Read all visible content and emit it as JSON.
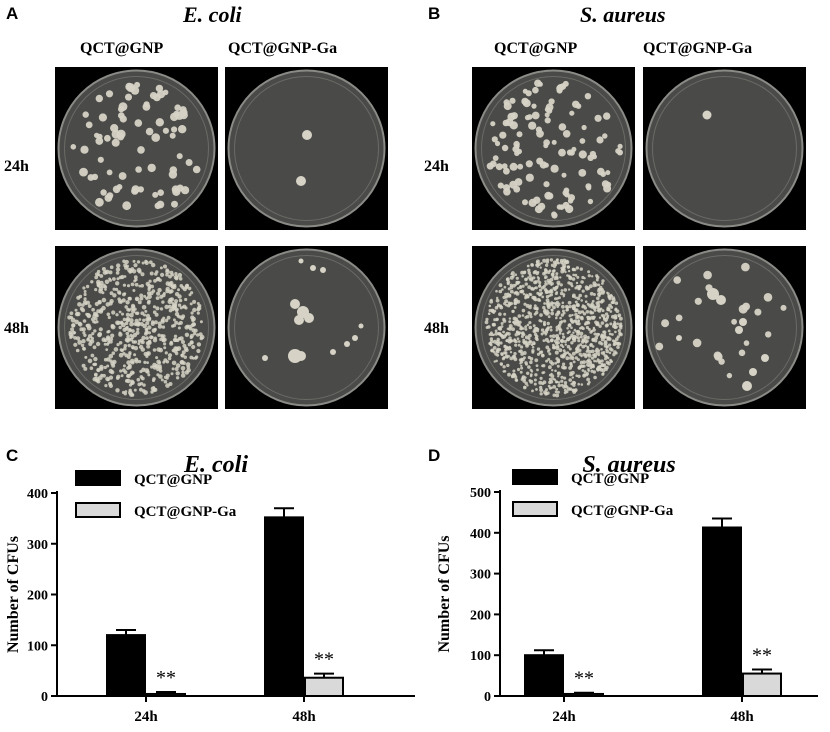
{
  "panel_a": {
    "letter": "A",
    "organism": "E. coli",
    "columns": [
      "QCT@GNP",
      "QCT@GNP-Ga"
    ],
    "rows": [
      "24h",
      "48h"
    ]
  },
  "panel_b": {
    "letter": "B",
    "organism": "S. aureus",
    "columns": [
      "QCT@GNP",
      "QCT@GNP-Ga"
    ],
    "rows": [
      "24h",
      "48h"
    ]
  },
  "colors": {
    "plate_background": "#000000",
    "dish": "#4a4a48",
    "colony": "#d6d3c6",
    "bar_gnp": "#000000",
    "bar_ga": "#d9d9d9"
  },
  "chart_data": [
    {
      "panel": "C",
      "type": "bar",
      "title": "E. coli",
      "ylabel": "Number of CFUs",
      "xlabel": "",
      "categories": [
        "24h",
        "48h"
      ],
      "ylim": [
        0,
        400
      ],
      "yticks": [
        0,
        100,
        200,
        300,
        400
      ],
      "legend_position": "top-left",
      "series": [
        {
          "name": "QCT@GNP",
          "values": [
            120,
            352
          ],
          "errors": [
            10,
            18
          ],
          "color": "#000000"
        },
        {
          "name": "QCT@GNP-Ga",
          "values": [
            4,
            36
          ],
          "errors": [
            4,
            8
          ],
          "color": "#d9d9d9",
          "annotations": [
            "**",
            "**"
          ]
        }
      ]
    },
    {
      "panel": "D",
      "type": "bar",
      "title": "S. aureus",
      "ylabel": "Number of CFUs",
      "xlabel": "",
      "categories": [
        "24h",
        "48h"
      ],
      "ylim": [
        0,
        500
      ],
      "yticks": [
        0,
        100,
        200,
        300,
        400,
        500
      ],
      "legend_position": "top-left",
      "series": [
        {
          "name": "QCT@GNP",
          "values": [
            100,
            413
          ],
          "errors": [
            12,
            22
          ],
          "color": "#000000"
        },
        {
          "name": "QCT@GNP-Ga",
          "values": [
            5,
            55
          ],
          "errors": [
            3,
            10
          ],
          "color": "#d9d9d9",
          "annotations": [
            "**",
            "**"
          ]
        }
      ]
    }
  ]
}
